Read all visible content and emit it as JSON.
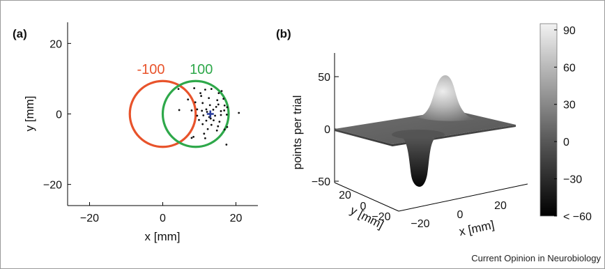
{
  "panel_a_label": "(a)",
  "panel_b_label": "(b)",
  "credit": "Current Opinion in Neurobiology",
  "chart_data": [
    {
      "type": "scatter",
      "panel": "(a)",
      "xlabel": "x [mm]",
      "ylabel": "y [mm]",
      "xlim": [
        -26,
        26
      ],
      "ylim": [
        -26,
        26
      ],
      "xticks": [
        -20,
        0,
        20
      ],
      "xtick_labels": [
        "−20",
        "0",
        "20"
      ],
      "yticks": [
        20,
        0,
        -20
      ],
      "ytick_labels": [
        "20",
        "0",
        "−20"
      ],
      "grid": false,
      "circles": [
        {
          "label": "-100",
          "center": [
            0,
            0
          ],
          "radius": 9,
          "color": "#e8532b"
        },
        {
          "label": "100",
          "center": [
            9,
            0
          ],
          "radius": 9,
          "color": "#2ea84a"
        }
      ],
      "target": {
        "point": [
          13,
          0
        ],
        "color": "#2b3f9e",
        "marker": "+"
      },
      "points": [
        [
          4.3,
          7.1
        ],
        [
          8.6,
          7.3
        ],
        [
          10.3,
          5.9
        ],
        [
          11.6,
          6.9
        ],
        [
          13.3,
          7.1
        ],
        [
          15.3,
          5.9
        ],
        [
          16.1,
          6.5
        ],
        [
          10.5,
          5.1
        ],
        [
          12.6,
          4.5
        ],
        [
          14.9,
          3.9
        ],
        [
          16.6,
          4.3
        ],
        [
          8.9,
          3.3
        ],
        [
          10.9,
          3.1
        ],
        [
          12.9,
          2.5
        ],
        [
          15.2,
          2.7
        ],
        [
          16.9,
          2.4
        ],
        [
          17.6,
          1.9
        ],
        [
          4.5,
          1.1
        ],
        [
          7.9,
          1.0
        ],
        [
          9.4,
          1.3
        ],
        [
          10.7,
          0.9
        ],
        [
          11.9,
          1.3
        ],
        [
          12.1,
          0.6
        ],
        [
          13.8,
          1.2
        ],
        [
          15.9,
          0.8
        ],
        [
          16.8,
          1.0
        ],
        [
          9.4,
          -0.5
        ],
        [
          11.1,
          -0.4
        ],
        [
          12.7,
          -0.9
        ],
        [
          14.3,
          -0.5
        ],
        [
          15.9,
          -0.3
        ],
        [
          17.5,
          -0.2
        ],
        [
          20.8,
          0.3
        ],
        [
          9.9,
          -1.7
        ],
        [
          11.9,
          -1.9
        ],
        [
          13.9,
          -1.8
        ],
        [
          15.5,
          -2.2
        ],
        [
          10.9,
          -2.9
        ],
        [
          13.3,
          -3.1
        ],
        [
          15.1,
          -3.5
        ],
        [
          17.6,
          -3.7
        ],
        [
          12.3,
          -4.3
        ],
        [
          14.8,
          -4.7
        ],
        [
          16.9,
          -4.4
        ],
        [
          11.3,
          -5.6
        ],
        [
          7.9,
          -6.8
        ],
        [
          8.4,
          -6.5
        ],
        [
          11.6,
          -6.9
        ],
        [
          17.4,
          -8.7
        ],
        [
          6.9,
          4.1
        ],
        [
          14.6,
          2.0
        ],
        [
          13.1,
          -1.3
        ]
      ]
    },
    {
      "type": "surface",
      "panel": "(b)",
      "zlabel": "points per trial",
      "xlabel": "x [mm]",
      "ylabel": "y [mm]",
      "zticks": [
        50,
        0,
        -50
      ],
      "ztick_labels": [
        "50",
        "0",
        "−50"
      ],
      "xtick_labels": [
        "−20",
        "0",
        "20"
      ],
      "ytick_labels": [
        "20",
        "0",
        "−20"
      ],
      "peak_max": 60,
      "trough_min": -60,
      "colorbar": {
        "ticks": [
          90,
          60,
          30,
          0,
          -30,
          -60
        ],
        "tick_labels": [
          "90",
          "60",
          "30",
          "0",
          "−30",
          "< −60"
        ],
        "range": [
          -60,
          95
        ]
      }
    }
  ]
}
